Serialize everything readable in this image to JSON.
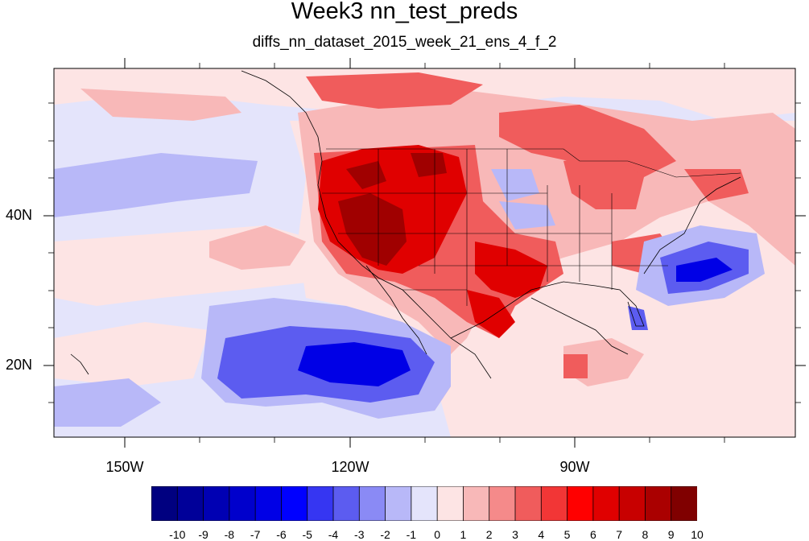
{
  "title": "Week3 nn_test_preds",
  "subtitle": "diffs_nn_dataset_2015_week_21_ens_4_f_2",
  "longitude_labels": [
    "150W",
    "120W",
    "90W"
  ],
  "latitude_labels": [
    "40N",
    "20N"
  ],
  "colorbar": {
    "tick_labels": [
      "-10",
      "-9",
      "-8",
      "-7",
      "-6",
      "-5",
      "-4",
      "-3",
      "-2",
      "-1",
      "0",
      "1",
      "2",
      "3",
      "4",
      "5",
      "6",
      "7",
      "8",
      "9",
      "10"
    ],
    "colors": [
      "#000080",
      "#000099",
      "#0000b3",
      "#0000cc",
      "#0000e6",
      "#0000ff",
      "#3636f2",
      "#5c5cf0",
      "#8a8af5",
      "#b8b8f8",
      "#e4e4fb",
      "#fde4e4",
      "#f8b8b8",
      "#f58a8a",
      "#f05c5c",
      "#f23636",
      "#ff0000",
      "#e00000",
      "#c80000",
      "#aa0000",
      "#800000"
    ]
  },
  "map_features": [
    "coastlines",
    "us-state-boundaries",
    "canada-province-boundaries",
    "mexico-state-boundaries",
    "hawaii"
  ]
}
